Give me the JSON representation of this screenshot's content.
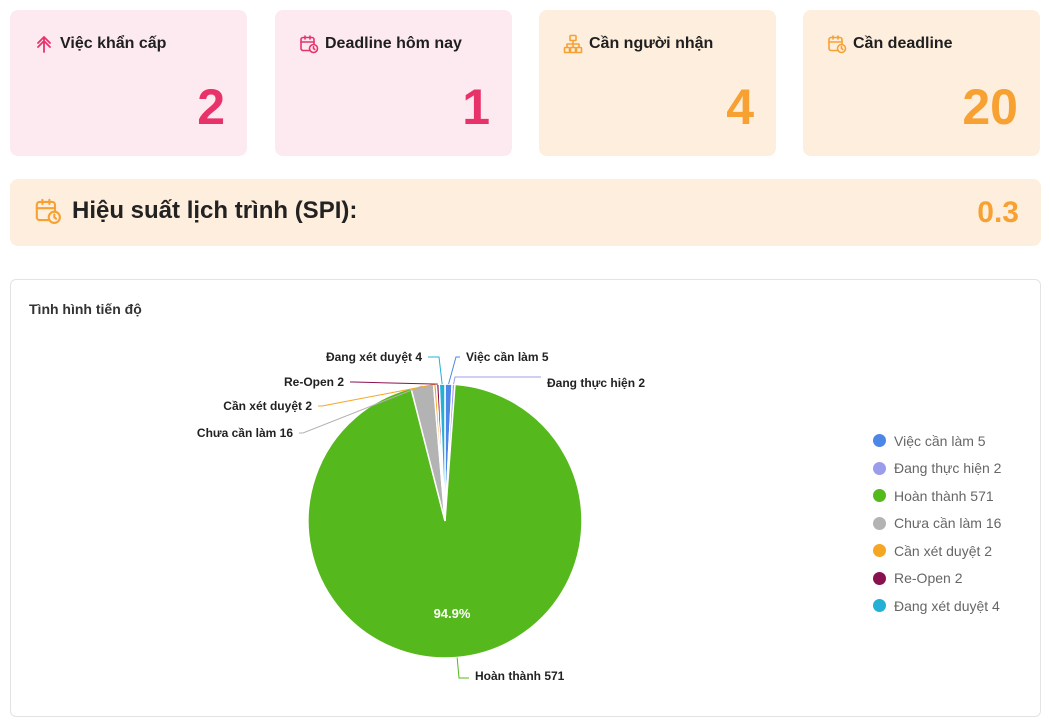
{
  "cards": [
    {
      "label": "Việc khẩn cấp",
      "value": "2",
      "icon": "arrow-up-icon",
      "theme": "pink"
    },
    {
      "label": "Deadline hôm nay",
      "value": "1",
      "icon": "calendar-clock-icon",
      "theme": "pink"
    },
    {
      "label": "Cần người nhận",
      "value": "4",
      "icon": "org-chart-icon",
      "theme": "orange"
    },
    {
      "label": "Cần deadline",
      "value": "20",
      "icon": "calendar-clock-icon",
      "theme": "orange"
    }
  ],
  "spi": {
    "label": "Hiệu suất lịch trình (SPI):",
    "value": "0.3",
    "icon": "calendar-clock-icon"
  },
  "colors": {
    "pink_accent": "#e8336a",
    "orange_accent": "#f7a133"
  },
  "chart_data": {
    "type": "pie",
    "title": "Tình hình tiến độ",
    "slices": [
      {
        "name": "Việc cần làm",
        "value": 5,
        "color": "#4e86e8",
        "label": "Việc cần làm 5"
      },
      {
        "name": "Đang thực hiện",
        "value": 2,
        "color": "#9c9cec",
        "label": "Đang thực hiện 2"
      },
      {
        "name": "Hoàn thành",
        "value": 571,
        "color": "#55b81c",
        "label": "Hoàn thành 571",
        "percent_label": "94.9%"
      },
      {
        "name": "Chưa cần làm",
        "value": 16,
        "color": "#b3b3b3",
        "label": "Chưa cần làm 16"
      },
      {
        "name": "Cần xét duyệt",
        "value": 2,
        "color": "#f5a623",
        "label": "Cần xét duyệt 2"
      },
      {
        "name": "Re-Open",
        "value": 2,
        "color": "#8a1150",
        "label": "Re-Open 2"
      },
      {
        "name": "Đang xét duyệt",
        "value": 4,
        "color": "#23b0d4",
        "label": "Đang xét duyệt 4"
      }
    ],
    "legend_position": "right"
  }
}
